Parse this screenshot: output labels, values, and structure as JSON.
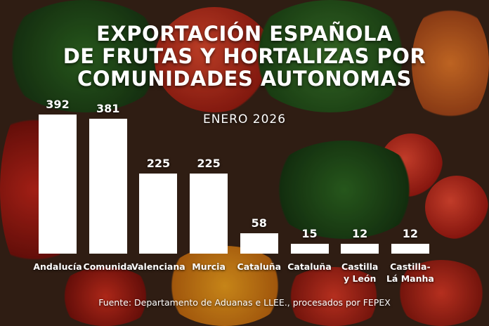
{
  "chart_data": {
    "type": "bar",
    "title": "EXPORTACIÓN ESPAÑOLA DE FRUTAS Y HORTALIZAS POR COMUNIDADES AUTONOMAS",
    "title_lines": [
      "EXPORTACIÓN ESPAÑOLA",
      "DE FRUTAS Y HORTALIZAS POR",
      "COMUNIDADES AUTONOMAS"
    ],
    "subtitle": "ENERO 2026",
    "categories": [
      "Andalucía",
      "Comunida",
      "Valenciana",
      "Murcia",
      "Cataluña",
      "Cataluña",
      "Castilla\ny León",
      "Castilla-\nLá Manha"
    ],
    "values": [
      392,
      381,
      225,
      225,
      58,
      15,
      12,
      12
    ],
    "source": "Fuente: Departamento de Aduanas e LLEE., procesados por FEPEX",
    "bar_color": "#ffffff",
    "grid": false,
    "legend": "none"
  }
}
